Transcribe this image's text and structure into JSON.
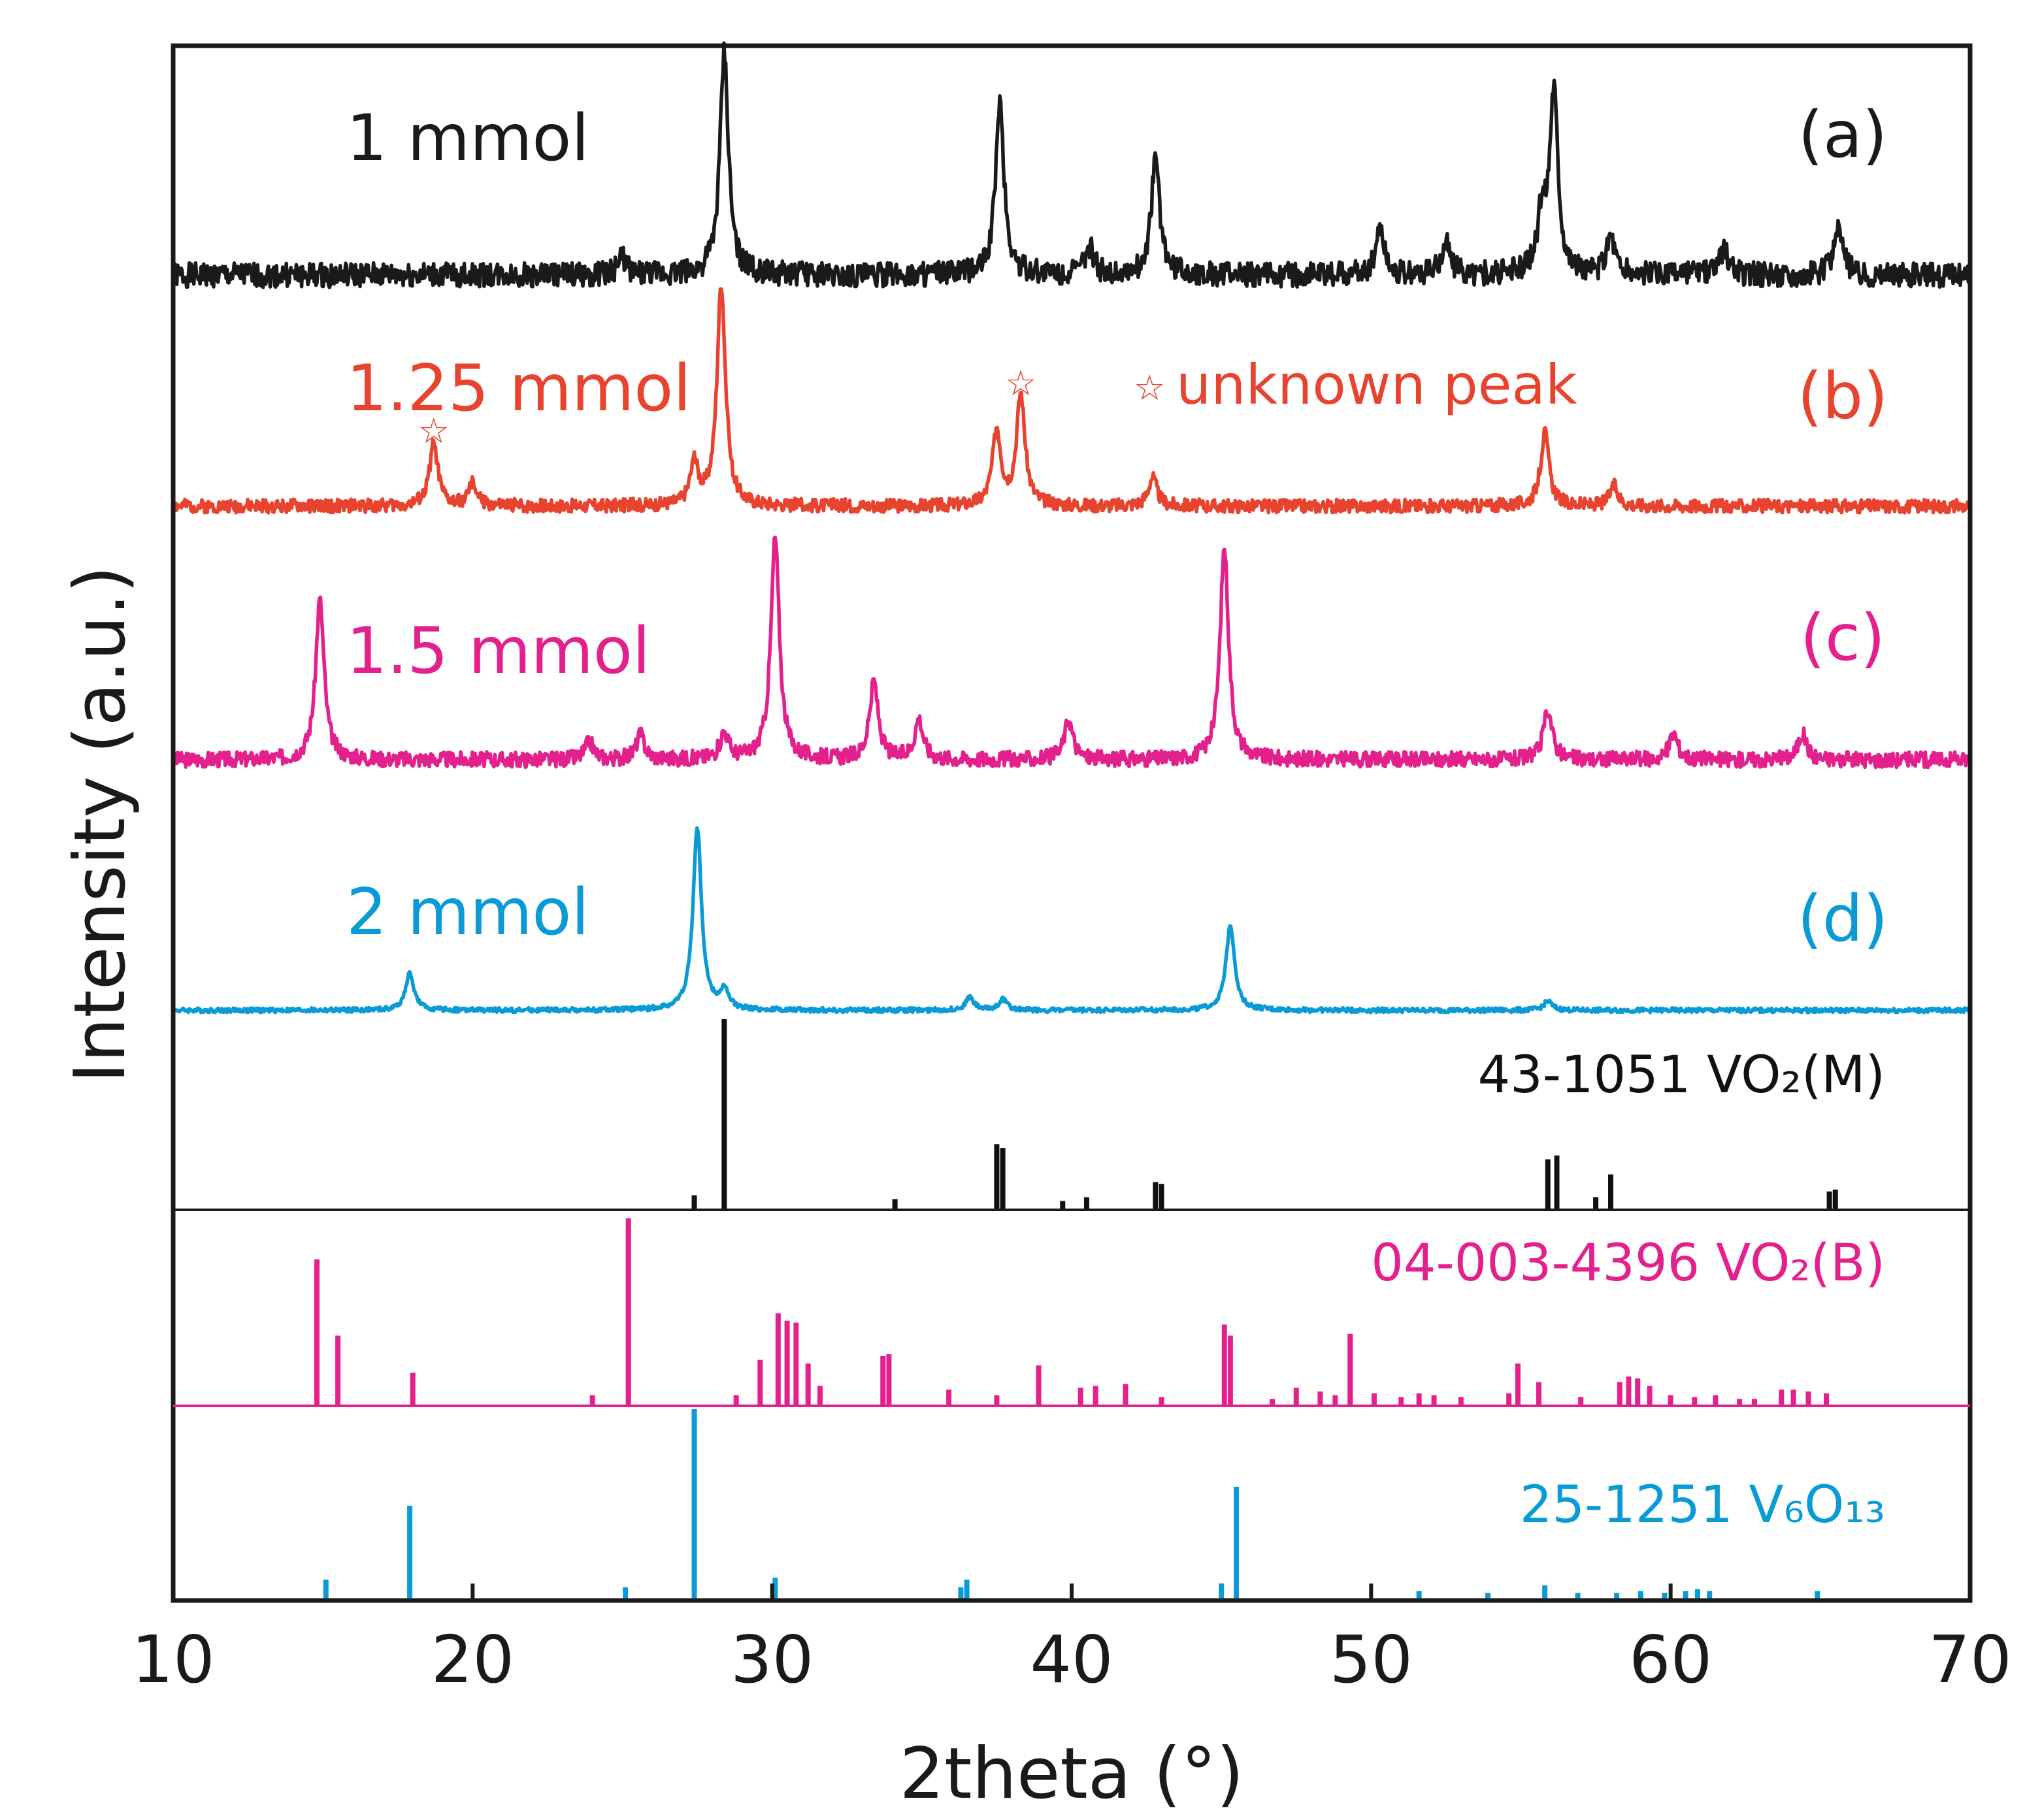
{
  "chart_data": {
    "type": "line",
    "xlabel": "2theta (°)",
    "ylabel": "Intensity (a.u.)",
    "xlim": [
      10,
      70
    ],
    "xticks": [
      "10",
      "20",
      "30",
      "40",
      "50",
      "60",
      "70"
    ],
    "series": [
      {
        "name": "1 mmol",
        "panel_label": "(a)",
        "color": "#1a1a1a",
        "peaks": [
          [
            28.4,
            1.0
          ],
          [
            37.6,
            0.78
          ],
          [
            42.8,
            0.52
          ],
          [
            56.1,
            0.83
          ],
          [
            55.7,
            0.25
          ],
          [
            65.6,
            0.22
          ],
          [
            50.3,
            0.22
          ],
          [
            52.5,
            0.15
          ],
          [
            40.6,
            0.12
          ],
          [
            25.0,
            0.08
          ],
          [
            58.0,
            0.18
          ],
          [
            61.8,
            0.12
          ]
        ],
        "noise": 0.11,
        "seed": 1
      },
      {
        "name": "1.25 mmol",
        "panel_label": "(b)",
        "color": "#e8432e",
        "peaks": [
          [
            28.3,
            1.0
          ],
          [
            38.3,
            0.5
          ],
          [
            37.5,
            0.34
          ],
          [
            18.7,
            0.28
          ],
          [
            55.8,
            0.33
          ],
          [
            42.7,
            0.13
          ],
          [
            58.1,
            0.09
          ],
          [
            27.4,
            0.18
          ],
          [
            20.0,
            0.1
          ]
        ],
        "noise": 0.06,
        "seed": 2
      },
      {
        "name": "1.5 mmol",
        "panel_label": "(c)",
        "color": "#e4208c",
        "peaks": [
          [
            14.9,
            0.72
          ],
          [
            30.1,
            1.0
          ],
          [
            45.1,
            0.96
          ],
          [
            33.4,
            0.35
          ],
          [
            34.9,
            0.18
          ],
          [
            39.9,
            0.18
          ],
          [
            28.4,
            0.12
          ],
          [
            25.6,
            0.11
          ],
          [
            55.9,
            0.23
          ],
          [
            60.1,
            0.12
          ],
          [
            64.4,
            0.12
          ],
          [
            23.9,
            0.08
          ]
        ],
        "noise": 0.07,
        "seed": 3
      },
      {
        "name": "2 mmol",
        "panel_label": "(d)",
        "color": "#0a9bd6",
        "peaks": [
          [
            27.5,
            1.0
          ],
          [
            45.3,
            0.47
          ],
          [
            17.9,
            0.2
          ],
          [
            28.4,
            0.1
          ],
          [
            36.6,
            0.07
          ],
          [
            37.7,
            0.06
          ],
          [
            55.9,
            0.05
          ]
        ],
        "noise": 0.025,
        "seed": 4
      }
    ],
    "references": [
      {
        "name": "43-1051 VO₂(M)",
        "color": "#111111",
        "sticks": [
          [
            28.4,
            1.0
          ],
          [
            37.5,
            0.34
          ],
          [
            37.7,
            0.32
          ],
          [
            42.8,
            0.14
          ],
          [
            43.0,
            0.13
          ],
          [
            55.9,
            0.26
          ],
          [
            56.2,
            0.28
          ],
          [
            57.5,
            0.06
          ],
          [
            58.0,
            0.18
          ],
          [
            65.3,
            0.09
          ],
          [
            65.5,
            0.1
          ],
          [
            34.1,
            0.05
          ],
          [
            27.4,
            0.07
          ],
          [
            39.7,
            0.04
          ],
          [
            40.5,
            0.06
          ]
        ]
      },
      {
        "name": "04-003-4396 VO₂(B)",
        "color": "#e4208c",
        "sticks": [
          [
            14.8,
            0.78
          ],
          [
            15.5,
            0.37
          ],
          [
            18.0,
            0.17
          ],
          [
            25.2,
            1.0
          ],
          [
            24.0,
            0.05
          ],
          [
            28.8,
            0.05
          ],
          [
            29.6,
            0.24
          ],
          [
            30.2,
            0.49
          ],
          [
            30.5,
            0.45
          ],
          [
            30.8,
            0.44
          ],
          [
            31.2,
            0.22
          ],
          [
            31.6,
            0.1
          ],
          [
            33.7,
            0.26
          ],
          [
            33.9,
            0.27
          ],
          [
            35.9,
            0.08
          ],
          [
            37.5,
            0.05
          ],
          [
            38.9,
            0.21
          ],
          [
            40.3,
            0.09
          ],
          [
            40.8,
            0.1
          ],
          [
            41.8,
            0.11
          ],
          [
            43.0,
            0.04
          ],
          [
            45.1,
            0.43
          ],
          [
            45.3,
            0.37
          ],
          [
            46.7,
            0.03
          ],
          [
            47.5,
            0.09
          ],
          [
            48.3,
            0.07
          ],
          [
            48.8,
            0.05
          ],
          [
            49.3,
            0.38
          ],
          [
            50.1,
            0.06
          ],
          [
            51.0,
            0.04
          ],
          [
            51.6,
            0.06
          ],
          [
            52.1,
            0.05
          ],
          [
            53.0,
            0.04
          ],
          [
            54.6,
            0.06
          ],
          [
            54.9,
            0.22
          ],
          [
            55.6,
            0.12
          ],
          [
            57.0,
            0.04
          ],
          [
            58.3,
            0.12
          ],
          [
            58.6,
            0.15
          ],
          [
            58.9,
            0.14
          ],
          [
            59.3,
            0.1
          ],
          [
            60.0,
            0.05
          ],
          [
            60.8,
            0.04
          ],
          [
            61.5,
            0.05
          ],
          [
            62.3,
            0.03
          ],
          [
            62.8,
            0.03
          ],
          [
            63.7,
            0.08
          ],
          [
            64.1,
            0.08
          ],
          [
            64.6,
            0.07
          ],
          [
            65.2,
            0.06
          ]
        ]
      },
      {
        "name": "25-1251 V₆O₁₃",
        "color": "#0a9bd6",
        "sticks": [
          [
            15.1,
            0.1
          ],
          [
            17.9,
            0.49
          ],
          [
            25.1,
            0.06
          ],
          [
            27.4,
            1.0
          ],
          [
            30.1,
            0.11
          ],
          [
            36.3,
            0.06
          ],
          [
            36.5,
            0.1
          ],
          [
            45.0,
            0.08
          ],
          [
            45.5,
            0.59
          ],
          [
            51.6,
            0.04
          ],
          [
            53.9,
            0.03
          ],
          [
            55.8,
            0.07
          ],
          [
            56.9,
            0.03
          ],
          [
            58.2,
            0.03
          ],
          [
            59.0,
            0.04
          ],
          [
            59.8,
            0.03
          ],
          [
            60.5,
            0.04
          ],
          [
            60.9,
            0.05
          ],
          [
            61.3,
            0.04
          ],
          [
            64.9,
            0.04
          ]
        ]
      }
    ],
    "annotation": {
      "symbol": "☆",
      "text": "unknown peak",
      "star_at": [
        18.7,
        38.3
      ],
      "color": "#e8432e"
    }
  }
}
